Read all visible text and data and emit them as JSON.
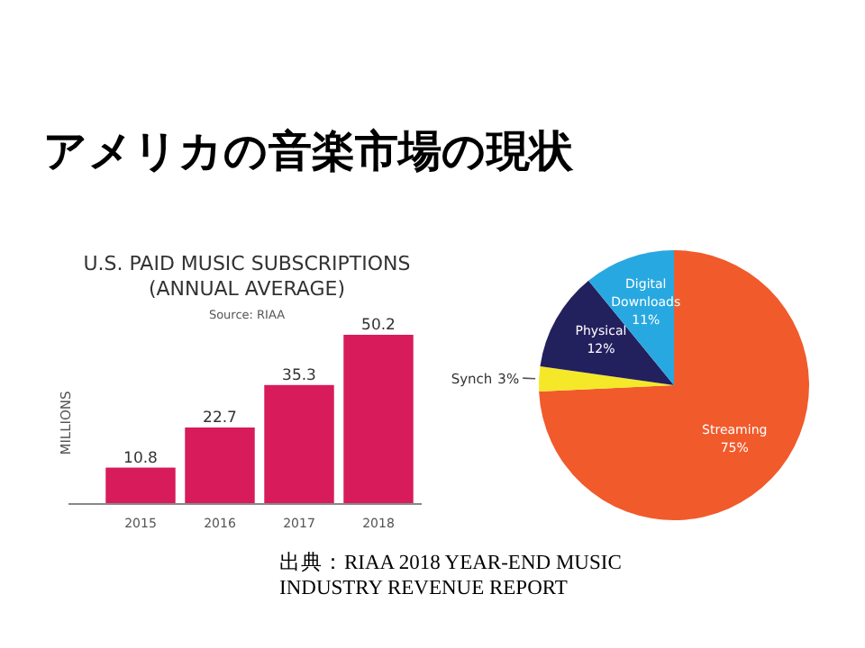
{
  "chart_data": [
    {
      "type": "other",
      "title": "アメリカの音楽市場の現状",
      "annotations": [
        "出典：RIAA 2018 YEAR-END MUSIC INDUSTRY REVENUE REPORT"
      ]
    },
    {
      "type": "bar",
      "title": "U.S. PAID MUSIC SUBSCRIPTIONS (ANNUAL AVERAGE)",
      "subtitle": "Source: RIAA",
      "ylabel": "MILLIONS",
      "categories": [
        "2015",
        "2016",
        "2017",
        "2018"
      ],
      "values": [
        10.8,
        22.7,
        35.3,
        50.2
      ],
      "color": "#d81b5a",
      "data_labels": true
    },
    {
      "type": "pie",
      "categories": [
        "Streaming",
        "Synch",
        "Physical",
        "Digital Downloads"
      ],
      "values": [
        75,
        3,
        12,
        11
      ],
      "colors": [
        "#f15a2b",
        "#f5e829",
        "#23205e",
        "#28a8e0"
      ],
      "value_labels": [
        "75%",
        "3%",
        "12%",
        "11%"
      ]
    }
  ]
}
